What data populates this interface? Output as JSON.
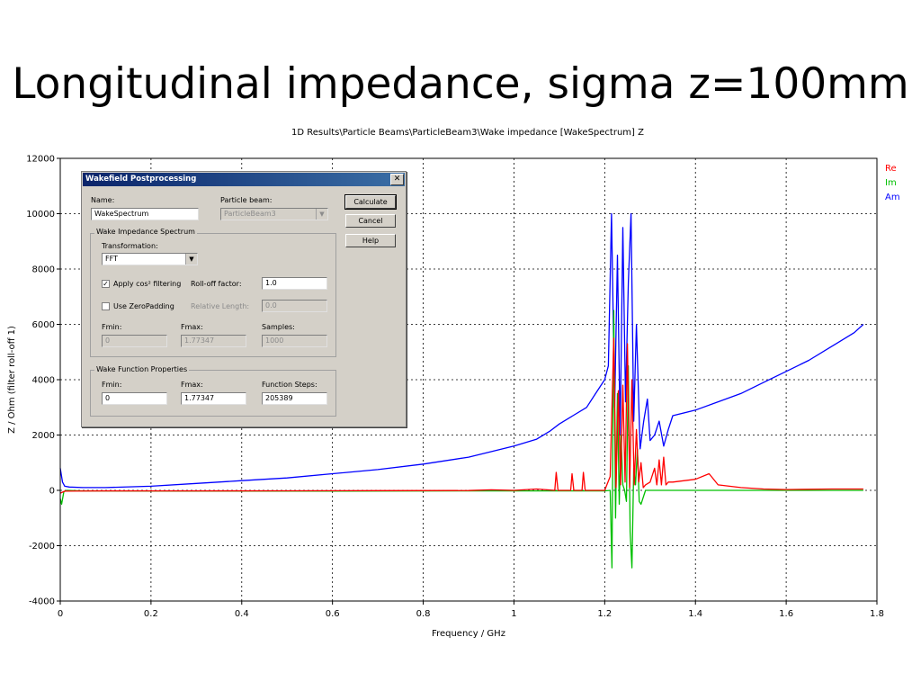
{
  "slide": {
    "title": "Longitudinal impedance, sigma  z=100mm"
  },
  "chart_data": {
    "type": "line",
    "title": "1D Results\\Particle Beams\\ParticleBeam3\\Wake impedance [WakeSpectrum] Z",
    "xlabel": "Frequency / GHz",
    "ylabel": "Z / Ohm (filter roll-off 1)",
    "xlim": [
      0,
      1.8
    ],
    "ylim": [
      -4000,
      12000
    ],
    "xticks": [
      0,
      0.2,
      0.4,
      0.6,
      0.8,
      1,
      1.2,
      1.4,
      1.6,
      1.8
    ],
    "xtick_labels": [
      "0",
      "0.2",
      "0.4",
      "0.6",
      "0.8",
      "1",
      "1.2",
      "1.4",
      "1.6",
      "1.8"
    ],
    "yticks": [
      -4000,
      -2000,
      0,
      2000,
      4000,
      6000,
      8000,
      10000,
      12000
    ],
    "ytick_labels": [
      "-4000",
      "-2000",
      "0",
      "2000",
      "4000",
      "6000",
      "8000",
      "10000",
      "12000"
    ],
    "grid": true,
    "legend_position": "top-right",
    "series": [
      {
        "name": "Re",
        "color": "#ff0000",
        "x": [
          0,
          0.01,
          0.1,
          0.3,
          0.5,
          0.7,
          0.9,
          0.95,
          1.0,
          1.05,
          1.09,
          1.093,
          1.097,
          1.1,
          1.125,
          1.128,
          1.132,
          1.135,
          1.15,
          1.153,
          1.157,
          1.16,
          1.2,
          1.212,
          1.22,
          1.225,
          1.23,
          1.235,
          1.24,
          1.245,
          1.25,
          1.255,
          1.26,
          1.265,
          1.27,
          1.275,
          1.28,
          1.285,
          1.29,
          1.3,
          1.31,
          1.315,
          1.32,
          1.325,
          1.33,
          1.335,
          1.34,
          1.35,
          1.4,
          1.43,
          1.45,
          1.5,
          1.55,
          1.6,
          1.7,
          1.77
        ],
        "y": [
          -100,
          -30,
          -20,
          -20,
          -15,
          -10,
          -5,
          20,
          0,
          50,
          0,
          650,
          0,
          0,
          0,
          600,
          0,
          0,
          0,
          650,
          0,
          0,
          0,
          500,
          5500,
          100,
          3600,
          200,
          3800,
          300,
          5300,
          100,
          4000,
          200,
          2200,
          300,
          1000,
          100,
          200,
          300,
          800,
          200,
          1100,
          200,
          1200,
          200,
          300,
          300,
          400,
          600,
          200,
          100,
          50,
          30,
          50,
          50
        ]
      },
      {
        "name": "Im",
        "color": "#00c000",
        "x": [
          0,
          0.003,
          0.008,
          0.015,
          0.05,
          0.3,
          0.6,
          0.9,
          1.0,
          1.2,
          1.212,
          1.216,
          1.22,
          1.224,
          1.228,
          1.232,
          1.236,
          1.24,
          1.244,
          1.248,
          1.252,
          1.256,
          1.26,
          1.264,
          1.268,
          1.272,
          1.276,
          1.28,
          1.29,
          1.3,
          1.32,
          1.35,
          1.4,
          1.5,
          1.6,
          1.77
        ],
        "y": [
          -300,
          -500,
          -50,
          0,
          -20,
          -30,
          -30,
          -20,
          -20,
          -20,
          0,
          -2800,
          6500,
          -1000,
          3500,
          -500,
          2000,
          200,
          0,
          -400,
          4500,
          -1500,
          -2800,
          800,
          200,
          1500,
          -400,
          -500,
          0,
          0,
          0,
          0,
          0,
          0,
          0,
          0
        ]
      },
      {
        "name": "Am",
        "color": "#0000ff",
        "x": [
          0,
          0.005,
          0.01,
          0.02,
          0.05,
          0.1,
          0.2,
          0.3,
          0.4,
          0.5,
          0.6,
          0.7,
          0.8,
          0.9,
          1.0,
          1.05,
          1.08,
          1.1,
          1.13,
          1.16,
          1.18,
          1.2,
          1.208,
          1.215,
          1.222,
          1.228,
          1.234,
          1.24,
          1.246,
          1.252,
          1.258,
          1.264,
          1.27,
          1.278,
          1.286,
          1.294,
          1.3,
          1.31,
          1.32,
          1.33,
          1.34,
          1.35,
          1.4,
          1.45,
          1.5,
          1.55,
          1.6,
          1.65,
          1.7,
          1.75,
          1.77
        ],
        "y": [
          800,
          300,
          150,
          120,
          100,
          100,
          150,
          250,
          350,
          450,
          600,
          750,
          950,
          1200,
          1600,
          1850,
          2150,
          2400,
          2700,
          3000,
          3500,
          4000,
          4500,
          10000,
          3000,
          8500,
          2000,
          9500,
          3200,
          7500,
          10000,
          2500,
          6000,
          1500,
          2500,
          3300,
          1800,
          2000,
          2500,
          1600,
          2200,
          2700,
          2900,
          3200,
          3500,
          3900,
          4300,
          4700,
          5200,
          5700,
          6000
        ]
      }
    ]
  },
  "dialog": {
    "title": "Wakefield Postprocessing",
    "close_icon": "close-icon",
    "name_label": "Name:",
    "name_value": "WakeSpectrum",
    "particle_beam_label": "Particle beam:",
    "particle_beam_value": "ParticleBeam3",
    "buttons": {
      "calculate": "Calculate",
      "cancel": "Cancel",
      "help": "Help"
    },
    "spectrum_group": {
      "title": "Wake Impedance Spectrum",
      "transformation_label": "Transformation:",
      "transformation_value": "FFT",
      "cos_filter_label": "Apply cos² filtering",
      "cos_filter_checked": true,
      "rolloff_label": "Roll-off factor:",
      "rolloff_value": "1.0",
      "zeropad_label": "Use ZeroPadding",
      "zeropad_checked": false,
      "rel_length_label": "Relative Length:",
      "rel_length_value": "0.0",
      "fmin_label": "Fmin:",
      "fmin_value": "0",
      "fmax_label": "Fmax:",
      "fmax_value": "1.77347",
      "samples_label": "Samples:",
      "samples_value": "1000"
    },
    "wake_group": {
      "title": "Wake Function Properties",
      "fmin_label": "Fmin:",
      "fmin_value": "0",
      "fmax_label": "Fmax:",
      "fmax_value": "1.77347",
      "steps_label": "Function Steps:",
      "steps_value": "205389"
    }
  }
}
